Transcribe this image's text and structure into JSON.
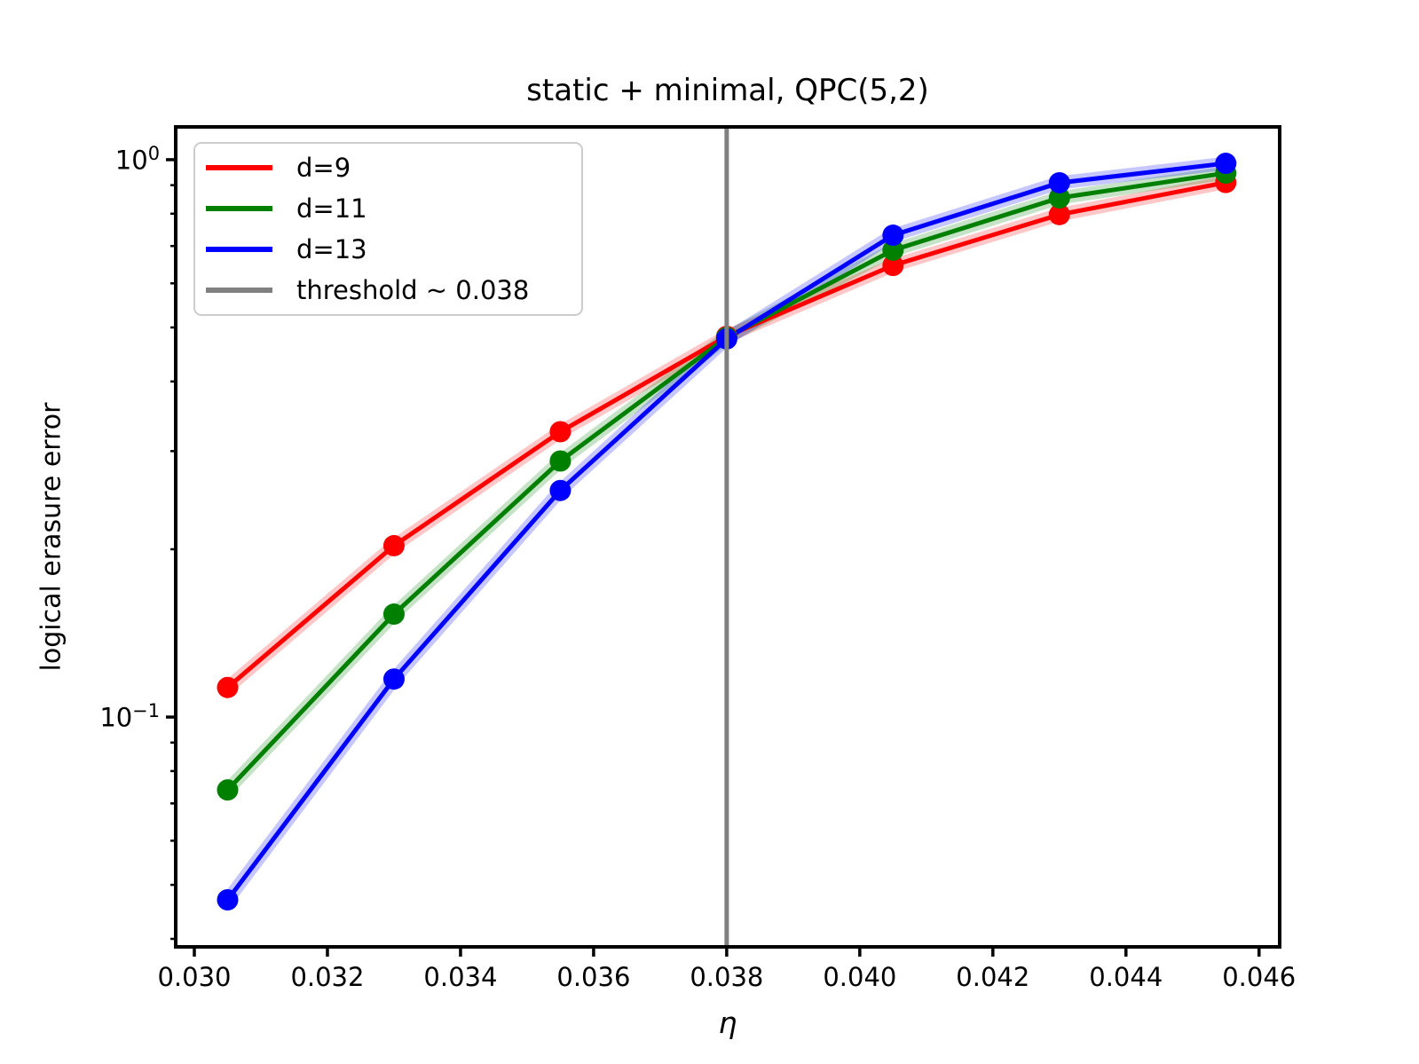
{
  "chart_data": {
    "type": "line",
    "title": "static + minimal, QPC(5,2)",
    "xlabel": "η",
    "ylabel": "logical erasure error",
    "yscale": "log",
    "grid": false,
    "legend_position": "upper left",
    "xlim": [
      0.02972,
      0.04631
    ],
    "ylim": [
      0.0387,
      1.145
    ],
    "xticks": [
      0.03,
      0.032,
      0.034,
      0.036,
      0.038,
      0.04,
      0.042,
      0.044,
      0.046
    ],
    "xtick_labels": [
      "0.030",
      "0.032",
      "0.034",
      "0.036",
      "0.038",
      "0.040",
      "0.042",
      "0.044",
      "0.046"
    ],
    "yticks": [
      {
        "value": 1.0,
        "base": "10",
        "exponent": "0"
      },
      {
        "value": 0.1,
        "base": "10",
        "exponent": "−1"
      }
    ],
    "x": [
      0.0305,
      0.033,
      0.0355,
      0.038,
      0.0405,
      0.043,
      0.0455
    ],
    "series": [
      {
        "name": "d=9",
        "color": "#ff0000",
        "values": [
          0.113,
          0.203,
          0.325,
          0.482,
          0.646,
          0.797,
          0.91
        ]
      },
      {
        "name": "d=11",
        "color": "#008000",
        "values": [
          0.074,
          0.153,
          0.288,
          0.48,
          0.688,
          0.854,
          0.946
        ]
      },
      {
        "name": "d=13",
        "color": "#0000ff",
        "values": [
          0.047,
          0.117,
          0.255,
          0.477,
          0.732,
          0.909,
          0.985
        ]
      }
    ],
    "threshold": {
      "label": "threshold ~ 0.038",
      "value": 0.038,
      "color": "#808080"
    },
    "band_opacity": 0.22,
    "axis_color": "#000000",
    "legend_edge_color": "#cccccc"
  }
}
